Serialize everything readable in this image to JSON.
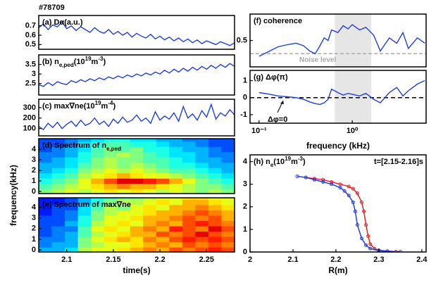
{
  "label": "#78709",
  "chart_data": [
    {
      "type": "line",
      "title": [
        [
          "(a) Dα(a.u.)",
          ""
        ]
      ],
      "color": "#1f3fe0",
      "x": [
        2.07,
        2.075,
        2.08,
        2.085,
        2.09,
        2.095,
        2.1,
        2.105,
        2.11,
        2.115,
        2.12,
        2.125,
        2.13,
        2.135,
        2.14,
        2.145,
        2.15,
        2.155,
        2.16,
        2.165,
        2.17,
        2.175,
        2.18,
        2.185,
        2.19,
        2.195,
        2.2,
        2.205,
        2.21,
        2.215,
        2.22,
        2.225,
        2.23,
        2.235,
        2.24,
        2.245,
        2.25,
        2.255,
        2.26,
        2.265,
        2.27,
        2.275,
        2.28
      ],
      "values": [
        0.68,
        0.72,
        0.66,
        0.71,
        0.69,
        0.74,
        0.67,
        0.7,
        0.65,
        0.69,
        0.66,
        0.63,
        0.68,
        0.64,
        0.62,
        0.66,
        0.61,
        0.64,
        0.6,
        0.63,
        0.58,
        0.62,
        0.59,
        0.57,
        0.61,
        0.56,
        0.59,
        0.55,
        0.58,
        0.54,
        0.57,
        0.53,
        0.56,
        0.52,
        0.55,
        0.51,
        0.54,
        0.52,
        0.5,
        0.53,
        0.51,
        0.49,
        0.52
      ],
      "xlim": [
        2.07,
        2.28
      ],
      "ylim": [
        0.45,
        0.81
      ],
      "yticks": [
        0.5,
        0.6,
        0.7
      ]
    },
    {
      "type": "line",
      "title": [
        [
          "(b) n",
          ""
        ],
        [
          "e,ped",
          "sub"
        ],
        [
          "(10",
          ""
        ],
        [
          "19",
          "sup"
        ],
        [
          "m",
          ""
        ],
        [
          "-3",
          "sup"
        ],
        [
          ")",
          ""
        ]
      ],
      "color": "#1f3fe0",
      "x": [
        2.07,
        2.075,
        2.08,
        2.085,
        2.09,
        2.095,
        2.1,
        2.105,
        2.11,
        2.115,
        2.12,
        2.125,
        2.13,
        2.135,
        2.14,
        2.145,
        2.15,
        2.155,
        2.16,
        2.165,
        2.17,
        2.175,
        2.18,
        2.185,
        2.19,
        2.195,
        2.2,
        2.205,
        2.21,
        2.215,
        2.22,
        2.225,
        2.23,
        2.235,
        2.24,
        2.245,
        2.25,
        2.255,
        2.26,
        2.265,
        2.27,
        2.275,
        2.28
      ],
      "values": [
        2.45,
        2.35,
        2.55,
        2.4,
        2.6,
        2.5,
        2.45,
        2.65,
        2.55,
        2.7,
        2.6,
        2.75,
        2.65,
        2.8,
        2.7,
        2.85,
        2.75,
        2.9,
        2.8,
        2.95,
        2.85,
        3.0,
        2.9,
        3.05,
        2.95,
        3.1,
        3.0,
        3.2,
        3.05,
        3.25,
        3.1,
        3.3,
        3.15,
        3.35,
        3.2,
        3.4,
        3.25,
        3.45,
        3.3,
        3.5,
        3.35,
        3.55,
        3.4
      ],
      "xlim": [
        2.07,
        2.28
      ],
      "ylim": [
        1.9,
        4.0
      ],
      "yticks": [
        2.5,
        3,
        3.5
      ]
    },
    {
      "type": "line",
      "title": [
        [
          "(c) max∇ne(10",
          ""
        ],
        [
          "19",
          "sup"
        ],
        [
          "m",
          ""
        ],
        [
          "-4",
          "sup"
        ],
        [
          ")",
          ""
        ]
      ],
      "color": "#1f3fe0",
      "x": [
        2.07,
        2.075,
        2.08,
        2.085,
        2.09,
        2.095,
        2.1,
        2.105,
        2.11,
        2.115,
        2.12,
        2.125,
        2.13,
        2.135,
        2.14,
        2.145,
        2.15,
        2.155,
        2.16,
        2.165,
        2.17,
        2.175,
        2.18,
        2.185,
        2.19,
        2.195,
        2.2,
        2.205,
        2.21,
        2.215,
        2.22,
        2.225,
        2.23,
        2.235,
        2.24,
        2.245,
        2.25,
        2.255,
        2.26,
        2.265,
        2.27,
        2.275,
        2.28
      ],
      "values": [
        120,
        90,
        150,
        110,
        160,
        100,
        140,
        170,
        120,
        180,
        130,
        150,
        200,
        140,
        170,
        120,
        190,
        150,
        210,
        160,
        180,
        230,
        170,
        200,
        150,
        260,
        180,
        220,
        190,
        250,
        170,
        310,
        200,
        240,
        180,
        270,
        210,
        330,
        190,
        250,
        220,
        280,
        230
      ],
      "xlim": [
        2.07,
        2.28
      ],
      "ylim": [
        30,
        380
      ],
      "yticks": [
        100,
        200,
        300
      ]
    },
    {
      "type": "heatmap",
      "title": [
        [
          "(d) Spectrum of n",
          ""
        ],
        [
          "e,ped",
          "sub"
        ]
      ],
      "ylabel": "frequency(kHz)",
      "x": [
        2.077,
        2.091,
        2.105,
        2.119,
        2.133,
        2.147,
        2.161,
        2.175,
        2.189,
        2.203,
        2.217,
        2.231,
        2.245,
        2.259,
        2.273
      ],
      "y": [
        0,
        0.5,
        1,
        1.5,
        2,
        2.5,
        3,
        3.5,
        4,
        4.5,
        5
      ],
      "z": [
        [
          0.5,
          0.55,
          0.6,
          0.55,
          0.6,
          0.65,
          0.6,
          0.65,
          0.6,
          0.55,
          0.6,
          0.55,
          0.5,
          0.55,
          0.5
        ],
        [
          0.45,
          0.5,
          0.55,
          0.6,
          0.65,
          0.7,
          0.75,
          0.7,
          0.7,
          0.65,
          0.6,
          0.55,
          0.5,
          0.5,
          0.45
        ],
        [
          0.4,
          0.45,
          0.5,
          0.6,
          0.7,
          0.8,
          0.9,
          0.9,
          0.85,
          0.8,
          0.7,
          0.6,
          0.5,
          0.45,
          0.4
        ],
        [
          0.35,
          0.4,
          0.45,
          0.55,
          0.6,
          0.65,
          0.7,
          0.65,
          0.6,
          0.6,
          0.55,
          0.5,
          0.45,
          0.4,
          0.35
        ],
        [
          0.3,
          0.35,
          0.4,
          0.5,
          0.55,
          0.6,
          0.55,
          0.6,
          0.55,
          0.5,
          0.45,
          0.45,
          0.4,
          0.35,
          0.3
        ],
        [
          0.3,
          0.3,
          0.35,
          0.45,
          0.5,
          0.55,
          0.5,
          0.55,
          0.5,
          0.45,
          0.4,
          0.4,
          0.35,
          0.3,
          0.3
        ],
        [
          0.25,
          0.3,
          0.35,
          0.4,
          0.5,
          0.55,
          0.5,
          0.5,
          0.45,
          0.45,
          0.4,
          0.35,
          0.3,
          0.3,
          0.25
        ],
        [
          0.25,
          0.25,
          0.3,
          0.4,
          0.45,
          0.5,
          0.55,
          0.5,
          0.45,
          0.4,
          0.35,
          0.35,
          0.3,
          0.25,
          0.25
        ],
        [
          0.2,
          0.25,
          0.3,
          0.35,
          0.45,
          0.5,
          0.45,
          0.5,
          0.4,
          0.4,
          0.35,
          0.3,
          0.3,
          0.25,
          0.2
        ],
        [
          0.2,
          0.2,
          0.25,
          0.35,
          0.4,
          0.45,
          0.45,
          0.4,
          0.4,
          0.35,
          0.3,
          0.3,
          0.25,
          0.2,
          0.2
        ],
        [
          0.2,
          0.2,
          0.25,
          0.3,
          0.35,
          0.4,
          0.4,
          0.35,
          0.35,
          0.3,
          0.3,
          0.25,
          0.25,
          0.2,
          0.2
        ]
      ],
      "xlim": [
        2.07,
        2.28
      ],
      "ylim": [
        -0.2,
        5.0
      ],
      "yticks": [
        0,
        1,
        2,
        3,
        4
      ]
    },
    {
      "type": "heatmap",
      "title": [
        [
          "(e) Spectrum of max∇ne",
          ""
        ]
      ],
      "xlabel": "time(s)",
      "x": [
        2.077,
        2.091,
        2.105,
        2.119,
        2.133,
        2.147,
        2.161,
        2.175,
        2.189,
        2.203,
        2.217,
        2.231,
        2.245,
        2.259,
        2.273
      ],
      "y": [
        0,
        0.5,
        1,
        1.5,
        2,
        2.5,
        3,
        3.5,
        4,
        4.5,
        5
      ],
      "z": [
        [
          0.3,
          0.3,
          0.35,
          0.55,
          0.6,
          0.6,
          0.65,
          0.7,
          0.75,
          0.7,
          0.8,
          0.75,
          0.8,
          0.85,
          0.8
        ],
        [
          0.25,
          0.3,
          0.3,
          0.5,
          0.55,
          0.6,
          0.6,
          0.65,
          0.7,
          0.75,
          0.7,
          0.8,
          0.75,
          0.8,
          0.75
        ],
        [
          0.25,
          0.25,
          0.3,
          0.5,
          0.6,
          0.65,
          0.7,
          0.65,
          0.75,
          0.7,
          0.8,
          0.85,
          0.8,
          0.85,
          0.8
        ],
        [
          0.2,
          0.25,
          0.3,
          0.45,
          0.55,
          0.6,
          0.65,
          0.7,
          0.7,
          0.8,
          0.75,
          0.8,
          0.9,
          0.8,
          0.75
        ],
        [
          0.2,
          0.25,
          0.25,
          0.45,
          0.6,
          0.65,
          0.6,
          0.7,
          0.75,
          0.7,
          0.85,
          0.8,
          0.75,
          0.9,
          0.8
        ],
        [
          0.2,
          0.2,
          0.3,
          0.4,
          0.55,
          0.6,
          0.65,
          0.6,
          0.7,
          0.75,
          0.7,
          0.8,
          0.85,
          0.8,
          0.75
        ],
        [
          0.2,
          0.2,
          0.25,
          0.4,
          0.5,
          0.6,
          0.6,
          0.65,
          0.7,
          0.7,
          0.75,
          0.8,
          0.75,
          0.8,
          0.7
        ],
        [
          0.15,
          0.2,
          0.25,
          0.35,
          0.5,
          0.55,
          0.6,
          0.6,
          0.65,
          0.7,
          0.7,
          0.75,
          0.8,
          0.75,
          0.7
        ],
        [
          0.15,
          0.2,
          0.2,
          0.35,
          0.45,
          0.55,
          0.5,
          0.6,
          0.65,
          0.6,
          0.7,
          0.7,
          0.75,
          0.7,
          0.65
        ],
        [
          0.15,
          0.15,
          0.2,
          0.3,
          0.4,
          0.5,
          0.55,
          0.55,
          0.6,
          0.65,
          0.6,
          0.7,
          0.7,
          0.65,
          0.6
        ],
        [
          0.15,
          0.15,
          0.2,
          0.3,
          0.4,
          0.45,
          0.5,
          0.5,
          0.55,
          0.6,
          0.6,
          0.65,
          0.65,
          0.6,
          0.6
        ]
      ],
      "xlim": [
        2.07,
        2.28
      ],
      "ylim": [
        -0.2,
        4.9
      ],
      "yticks": [
        0,
        1,
        2,
        3,
        4
      ],
      "xticks": [
        2.1,
        2.15,
        2.2,
        2.25
      ]
    },
    {
      "type": "line",
      "title": [
        [
          "(f) coherence",
          ""
        ]
      ],
      "color": "#1f3fe0",
      "xscale": "log",
      "x": [
        0.1,
        0.13,
        0.16,
        0.2,
        0.25,
        0.3,
        0.35,
        0.4,
        0.45,
        0.5,
        0.55,
        0.6,
        0.7,
        0.8,
        0.9,
        1.0,
        1.2,
        1.4,
        1.7,
        2.0,
        2.5,
        3.0,
        3.5,
        4.0,
        5.0,
        6.0
      ],
      "values": [
        0.2,
        0.3,
        0.38,
        0.42,
        0.45,
        0.4,
        0.3,
        0.25,
        0.4,
        0.55,
        0.5,
        0.7,
        0.65,
        0.78,
        0.72,
        0.8,
        0.7,
        0.75,
        0.6,
        0.3,
        0.55,
        0.45,
        0.65,
        0.35,
        0.55,
        0.45
      ],
      "noise_level": 0.25,
      "noise_label": "Noise level",
      "shade": [
        0.65,
        1.6
      ],
      "xlim": [
        0.08,
        6.2
      ],
      "ylim": [
        0,
        1
      ],
      "yticks": [
        0.5
      ]
    },
    {
      "type": "line",
      "title": [
        [
          "(g) Δφ(π)",
          ""
        ]
      ],
      "color": "#1f3fe0",
      "xscale": "log",
      "xlabel": "frequency (kHz)",
      "x": [
        0.1,
        0.13,
        0.16,
        0.2,
        0.25,
        0.3,
        0.35,
        0.4,
        0.45,
        0.5,
        0.55,
        0.6,
        0.7,
        0.8,
        0.9,
        1.0,
        1.2,
        1.4,
        1.7,
        2.0,
        2.5,
        3.0,
        3.5,
        4.0,
        5.0,
        6.0
      ],
      "values": [
        0.3,
        0.2,
        0.1,
        0.05,
        0.0,
        -0.1,
        -0.25,
        -0.35,
        -0.4,
        -0.3,
        -0.1,
        0.5,
        0.3,
        0.15,
        0.25,
        0.2,
        0.1,
        0.25,
        -0.1,
        -0.3,
        0.3,
        0.6,
        0.1,
        0.4,
        0.8,
        1.0
      ],
      "reference": 0,
      "annotation": "Δφ=0",
      "shade": [
        0.65,
        1.6
      ],
      "xlim": [
        0.08,
        6.2
      ],
      "ylim": [
        -1.5,
        1.6
      ],
      "yticks": [
        -1,
        0,
        1
      ],
      "xticks": [
        {
          "value": 0.1,
          "label": "10⁻¹"
        },
        {
          "value": 1,
          "label": "10⁰"
        }
      ]
    },
    {
      "type": "profile",
      "title": [
        [
          "(h) n",
          ""
        ],
        [
          "e",
          "sub"
        ],
        [
          "(10",
          ""
        ],
        [
          "19",
          "sup"
        ],
        [
          "m",
          ""
        ],
        [
          "-3",
          "sup"
        ],
        [
          ")",
          ""
        ]
      ],
      "annotation": "t=[2.15-2.16]s",
      "xlabel": "R(m)",
      "series": [
        {
          "color": "#e8202a",
          "x": [
            2.13,
            2.15,
            2.17,
            2.19,
            2.21,
            2.23,
            2.24,
            2.25,
            2.26,
            2.265,
            2.27,
            2.275,
            2.28,
            2.29,
            2.3,
            2.32,
            2.34
          ],
          "values": [
            3.3,
            3.25,
            3.2,
            3.1,
            3.0,
            2.9,
            2.8,
            2.6,
            2.2,
            1.8,
            1.2,
            0.7,
            0.35,
            0.15,
            0.08,
            0.04,
            0.02
          ]
        },
        {
          "color": "#1f3fe0",
          "x": [
            2.11,
            2.13,
            2.15,
            2.17,
            2.19,
            2.21,
            2.22,
            2.23,
            2.24,
            2.245,
            2.25,
            2.26,
            2.27,
            2.28,
            2.3,
            2.32,
            2.35
          ],
          "values": [
            3.35,
            3.3,
            3.2,
            3.1,
            3.0,
            2.85,
            2.7,
            2.5,
            2.2,
            1.8,
            1.2,
            0.6,
            0.3,
            0.15,
            0.06,
            0.03,
            0.01
          ]
        }
      ],
      "xlim": [
        2.0,
        2.41
      ],
      "ylim": [
        0,
        4.3
      ],
      "xticks": [
        2,
        2.1,
        2.2,
        2.3,
        2.4
      ],
      "yticks": [
        0,
        1,
        2,
        3,
        4
      ]
    }
  ]
}
